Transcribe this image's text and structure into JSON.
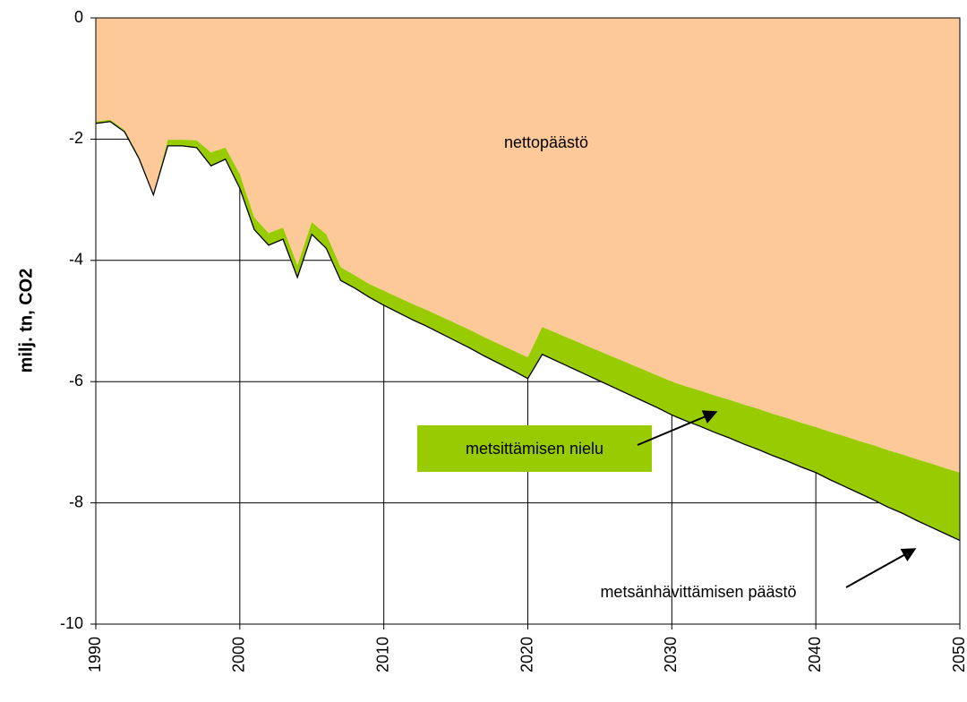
{
  "chart_data": {
    "type": "stacked_area",
    "y_label": "milj. tn, CO2",
    "x": [
      1990,
      1991,
      1992,
      1993,
      1994,
      1995,
      1996,
      1997,
      1998,
      1999,
      2000,
      2001,
      2002,
      2003,
      2004,
      2005,
      2006,
      2007,
      2008,
      2009,
      2010,
      2011,
      2012,
      2013,
      2014,
      2015,
      2016,
      2017,
      2018,
      2019,
      2020,
      2021,
      2022,
      2023,
      2024,
      2025,
      2026,
      2027,
      2028,
      2029,
      2030,
      2031,
      2032,
      2033,
      2034,
      2035,
      2036,
      2037,
      2038,
      2039,
      2040,
      2041,
      2042,
      2043,
      2044,
      2045,
      2046,
      2047,
      2048,
      2049,
      2050
    ],
    "series": [
      {
        "name": "nettopäästö",
        "color": "#fdc998",
        "values": [
          -1.71,
          -1.68,
          -1.85,
          -2.29,
          -2.9,
          -2.01,
          -2.01,
          -2.02,
          -2.22,
          -2.14,
          -2.58,
          -3.29,
          -3.55,
          -3.46,
          -4.08,
          -3.37,
          -3.57,
          -4.11,
          -4.25,
          -4.39,
          -4.5,
          -4.61,
          -4.72,
          -4.82,
          -4.93,
          -5.04,
          -5.15,
          -5.27,
          -5.38,
          -5.49,
          -5.6,
          -5.1,
          -5.2,
          -5.3,
          -5.4,
          -5.5,
          -5.6,
          -5.7,
          -5.8,
          -5.9,
          -6.0,
          -6.08,
          -6.15,
          -6.23,
          -6.3,
          -6.38,
          -6.45,
          -6.53,
          -6.6,
          -6.68,
          -6.75,
          -6.83,
          -6.9,
          -6.98,
          -7.05,
          -7.13,
          -7.2,
          -7.28,
          -7.35,
          -7.43,
          -7.5
        ]
      },
      {
        "name": "metsittämisen nielu",
        "color": "#99cc00",
        "values": [
          -0.03,
          -0.03,
          -0.03,
          -0.03,
          -0.02,
          -0.1,
          -0.1,
          -0.12,
          -0.22,
          -0.19,
          -0.23,
          -0.2,
          -0.2,
          -0.19,
          -0.2,
          -0.2,
          -0.23,
          -0.22,
          -0.21,
          -0.22,
          -0.24,
          -0.25,
          -0.26,
          -0.27,
          -0.28,
          -0.29,
          -0.3,
          -0.31,
          -0.32,
          -0.33,
          -0.35,
          -0.45,
          -0.46,
          -0.47,
          -0.48,
          -0.49,
          -0.5,
          -0.51,
          -0.52,
          -0.53,
          -0.55,
          -0.57,
          -0.59,
          -0.61,
          -0.63,
          -0.65,
          -0.67,
          -0.69,
          -0.71,
          -0.73,
          -0.75,
          -0.79,
          -0.83,
          -0.86,
          -0.9,
          -0.94,
          -0.97,
          -1.01,
          -1.05,
          -1.08,
          -1.12
        ]
      }
    ],
    "annotations": [
      {
        "text": "metsänhävittämisen päästö"
      }
    ],
    "xlim": [
      1990,
      2050
    ],
    "xticks": [
      1990,
      2000,
      2010,
      2020,
      2030,
      2040,
      2050
    ],
    "ylim": [
      -10,
      0
    ],
    "yticks": [
      0,
      -2,
      -4,
      -6,
      -8,
      -10
    ],
    "grid": true
  }
}
